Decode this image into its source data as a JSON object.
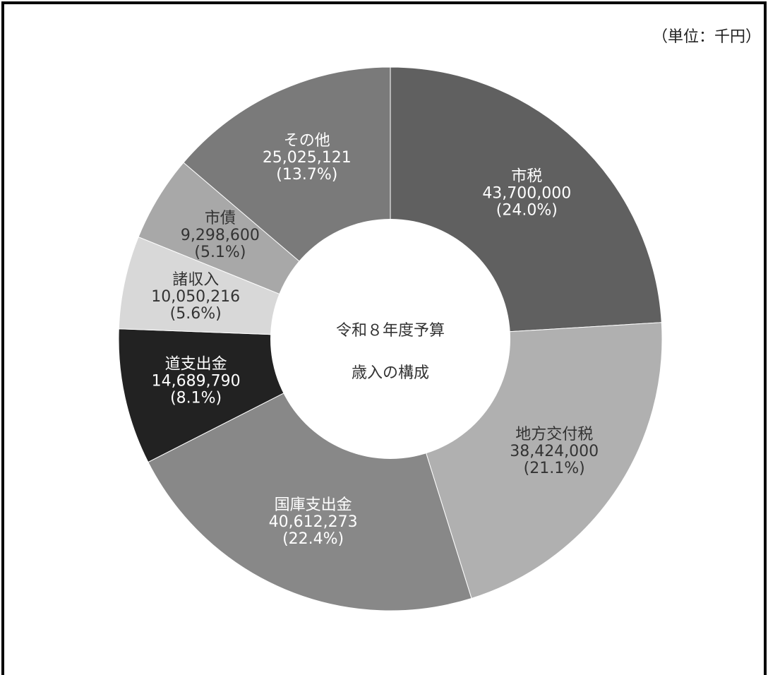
{
  "unit_note": "（単位：千円）",
  "chart_data": {
    "type": "pie",
    "variant": "donut",
    "title": "令和８年度予算",
    "subtitle": "歳入の構成",
    "unit": "千円",
    "slices": [
      {
        "name": "市税",
        "value": 43700000,
        "value_label": "43,700,000",
        "percent_label": "(24.0%)",
        "color": "#606060",
        "text_color": "#ffffff"
      },
      {
        "name": "地方交付税",
        "value": 38424000,
        "value_label": "38,424,000",
        "percent_label": "(21.1%)",
        "color": "#b0b0b0",
        "text_color": "#333333"
      },
      {
        "name": "国庫支出金",
        "value": 40612273,
        "value_label": "40,612,273",
        "percent_label": "(22.4%)",
        "color": "#888888",
        "text_color": "#ffffff"
      },
      {
        "name": "道支出金",
        "value": 14689790,
        "value_label": "14,689,790",
        "percent_label": "(8.1%)",
        "color": "#222222",
        "text_color": "#ffffff"
      },
      {
        "name": "諸収入",
        "value": 10050216,
        "value_label": "10,050,216",
        "percent_label": "(5.6%)",
        "color": "#d8d8d8",
        "text_color": "#333333"
      },
      {
        "name": "市債",
        "value": 9298600,
        "value_label": "9,298,600",
        "percent_label": "(5.1%)",
        "color": "#a8a8a8",
        "text_color": "#333333"
      },
      {
        "name": "その他",
        "value": 25025121,
        "value_label": "25,025,121",
        "percent_label": "(13.7%)",
        "color": "#7a7a7a",
        "text_color": "#ffffff"
      }
    ]
  }
}
